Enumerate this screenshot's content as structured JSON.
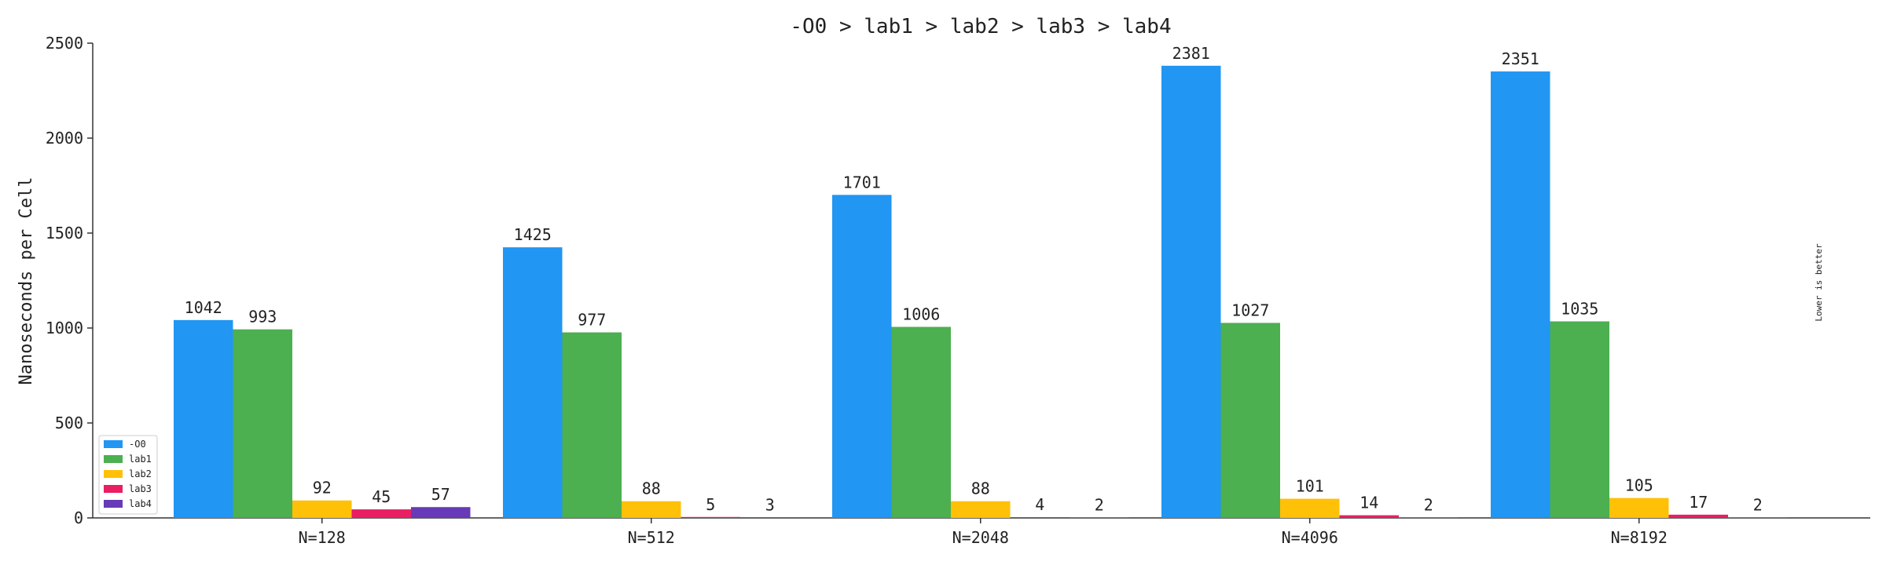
{
  "chart_data": {
    "type": "bar",
    "title": "-O0 > lab1 > lab2 > lab3 > lab4",
    "xlabel": "",
    "ylabel": "Nanoseconds per Cell",
    "ylim": [
      0,
      2500
    ],
    "yticks": [
      0,
      500,
      1000,
      1500,
      2000,
      2500
    ],
    "categories": [
      "N=128",
      "N=512",
      "N=2048",
      "N=4096",
      "N=8192"
    ],
    "series": [
      {
        "name": "-O0",
        "color": "#2196F3",
        "values": [
          1042,
          1425,
          1701,
          2381,
          2351
        ]
      },
      {
        "name": "lab1",
        "color": "#4CAF50",
        "values": [
          993,
          977,
          1006,
          1027,
          1035
        ]
      },
      {
        "name": "lab2",
        "color": "#FFC107",
        "values": [
          92,
          88,
          88,
          101,
          105
        ]
      },
      {
        "name": "lab3",
        "color": "#E91E63",
        "values": [
          45,
          5,
          4,
          14,
          17
        ]
      },
      {
        "name": "lab4",
        "color": "#673AB7",
        "values": [
          57,
          3,
          2,
          2,
          2
        ]
      }
    ],
    "grid": false,
    "legend_position": "bottom-left",
    "annotation": "Lower is better"
  }
}
